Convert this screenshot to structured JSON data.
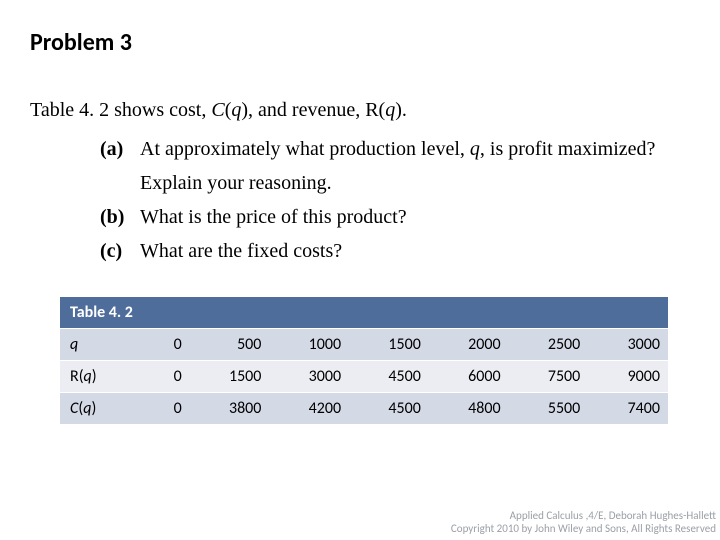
{
  "title": "Problem 3",
  "intro_parts": [
    "Table 4. 2 shows cost, ",
    "C",
    "(",
    "q",
    "), and revenue, R(",
    "q",
    ")."
  ],
  "items": [
    {
      "label": "(a)",
      "parts": [
        "At approximately what production level, ",
        "q",
        ", is profit maximized? Explain your reasoning."
      ]
    },
    {
      "label": "(b)",
      "parts": [
        "What is the price of this product?"
      ]
    },
    {
      "label": "(c)",
      "parts": [
        " What are the fixed costs?"
      ]
    }
  ],
  "table": {
    "caption": "Table 4. 2",
    "colors": {
      "header_bg": "#4f6d9b",
      "header_text": "#ffffff",
      "row_odd_bg": "#d3d9e5",
      "row_even_bg": "#ebedf3"
    },
    "rows": [
      {
        "label": "q",
        "label_italic": true,
        "values": [
          "0",
          "500",
          "1000",
          "1500",
          "2000",
          "2500",
          "3000"
        ]
      },
      {
        "label_html": "R(q)",
        "label": "R(q)",
        "values": [
          "0",
          "1500",
          "3000",
          "4500",
          "6000",
          "7500",
          "9000"
        ]
      },
      {
        "label_html": "C(q)",
        "label": "C(q)",
        "values": [
          "0",
          "3800",
          "4200",
          "4500",
          "4800",
          "5500",
          "7400"
        ]
      }
    ]
  },
  "footer": {
    "line1": "Applied Calculus ,4/E, Deborah Hughes-Hallett",
    "line2": "Copyright 2010 by John Wiley and Sons, All Rights Reserved"
  }
}
